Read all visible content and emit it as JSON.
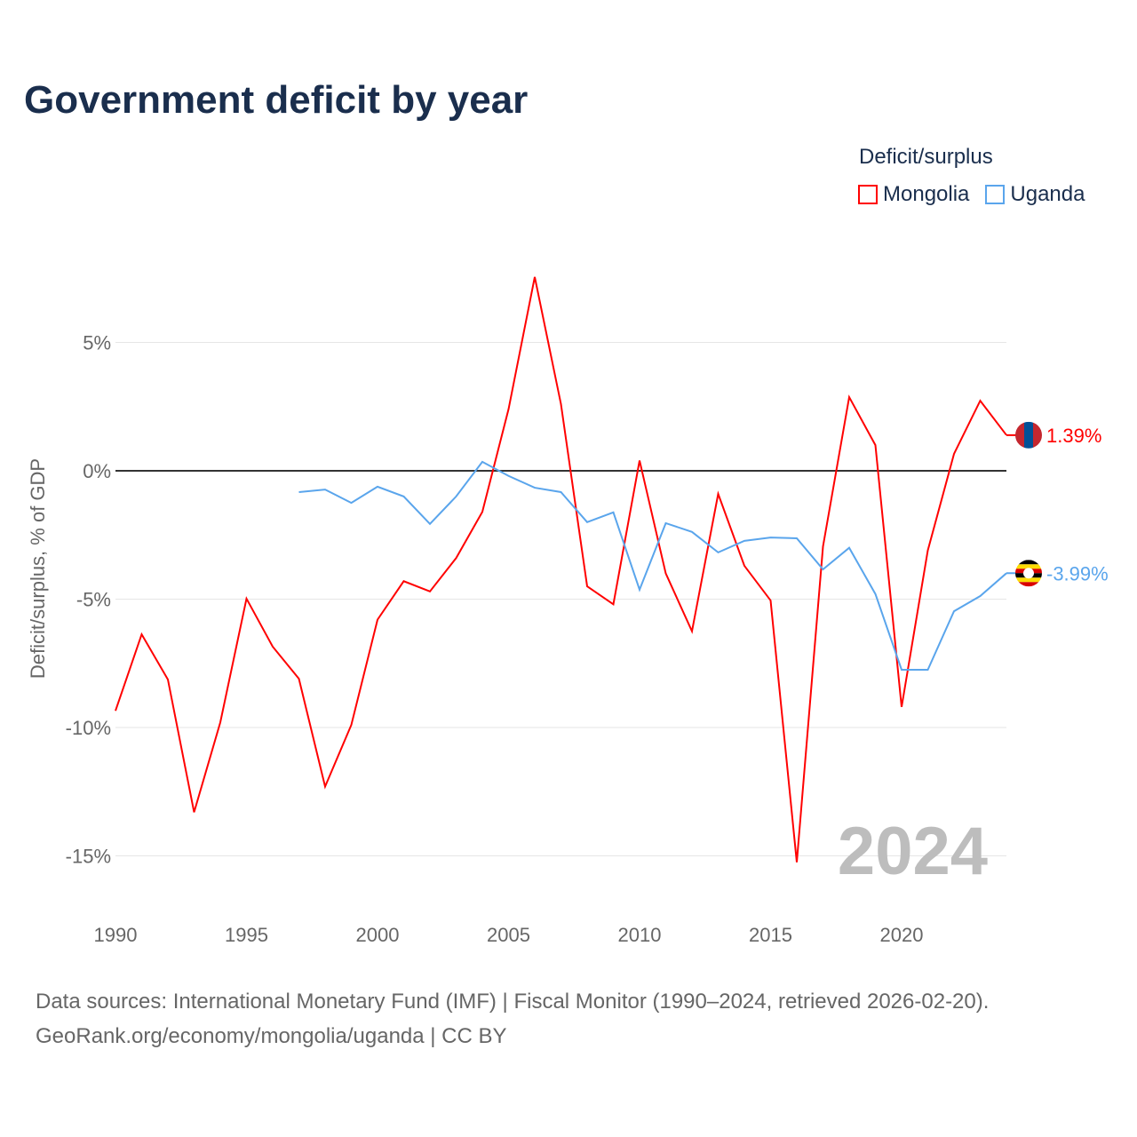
{
  "title": "Government deficit by year",
  "legend": {
    "title": "Deficit/surplus",
    "items": [
      {
        "label": "Mongolia",
        "color": "#ff0000"
      },
      {
        "label": "Uganda",
        "color": "#5aa5ec"
      }
    ]
  },
  "watermark_year": "2024",
  "source_line1": "Data sources: International Monetary Fund (IMF) | Fiscal Monitor (1990–2024, retrieved 2026-02-20).",
  "source_line2": "GeoRank.org/economy/mongolia/uganda | CC BY",
  "chart_data": {
    "type": "line",
    "title": "Government deficit by year",
    "xlabel": "",
    "ylabel": "Deficit/surplus, % of GDP",
    "xlim": [
      1990,
      2024
    ],
    "ylim": [
      -17,
      8
    ],
    "xticks": [
      1990,
      1995,
      2000,
      2005,
      2010,
      2015,
      2020
    ],
    "xtick_labels": [
      "1990",
      "1995",
      "2000",
      "2005",
      "2010",
      "2015",
      "2020"
    ],
    "yticks": [
      5,
      0,
      -5,
      -10,
      -15
    ],
    "ytick_labels": [
      "5%",
      "0%",
      "-5%",
      "-10%",
      "-15%"
    ],
    "grid": true,
    "legend_position": "top-right",
    "series": [
      {
        "name": "Mongolia",
        "color": "#ff0000",
        "end_label": "1.39%",
        "x": [
          1990,
          1991,
          1992,
          1993,
          1994,
          1995,
          1996,
          1997,
          1998,
          1999,
          2000,
          2001,
          2002,
          2003,
          2004,
          2005,
          2006,
          2007,
          2008,
          2009,
          2010,
          2011,
          2012,
          2013,
          2014,
          2015,
          2016,
          2017,
          2018,
          2019,
          2020,
          2021,
          2022,
          2023,
          2024
        ],
        "values": [
          -9.35,
          -6.37,
          -8.13,
          -13.3,
          -9.8,
          -4.98,
          -6.85,
          -8.1,
          -12.3,
          -9.9,
          -5.8,
          -4.3,
          -4.7,
          -3.4,
          -1.6,
          2.4,
          7.55,
          2.6,
          -4.5,
          -5.2,
          0.4,
          -4.0,
          -6.25,
          -0.9,
          -3.7,
          -5.05,
          -15.25,
          -2.95,
          2.87,
          1.0,
          -9.2,
          -3.1,
          0.66,
          2.73,
          1.39
        ]
      },
      {
        "name": "Uganda",
        "color": "#5aa5ec",
        "end_label": "-3.99%",
        "x": [
          1997,
          1998,
          1999,
          2000,
          2001,
          2002,
          2003,
          2004,
          2005,
          2006,
          2007,
          2008,
          2009,
          2010,
          2011,
          2012,
          2013,
          2014,
          2015,
          2016,
          2017,
          2018,
          2019,
          2020,
          2021,
          2022,
          2023,
          2024
        ],
        "values": [
          -0.83,
          -0.73,
          -1.25,
          -0.62,
          -1.0,
          -2.07,
          -1.0,
          0.35,
          -0.2,
          -0.66,
          -0.83,
          -2.0,
          -1.62,
          -4.63,
          -2.04,
          -2.38,
          -3.18,
          -2.73,
          -2.6,
          -2.63,
          -3.84,
          -3.0,
          -4.8,
          -7.75,
          -7.75,
          -5.47,
          -4.88,
          -3.99
        ]
      }
    ]
  }
}
